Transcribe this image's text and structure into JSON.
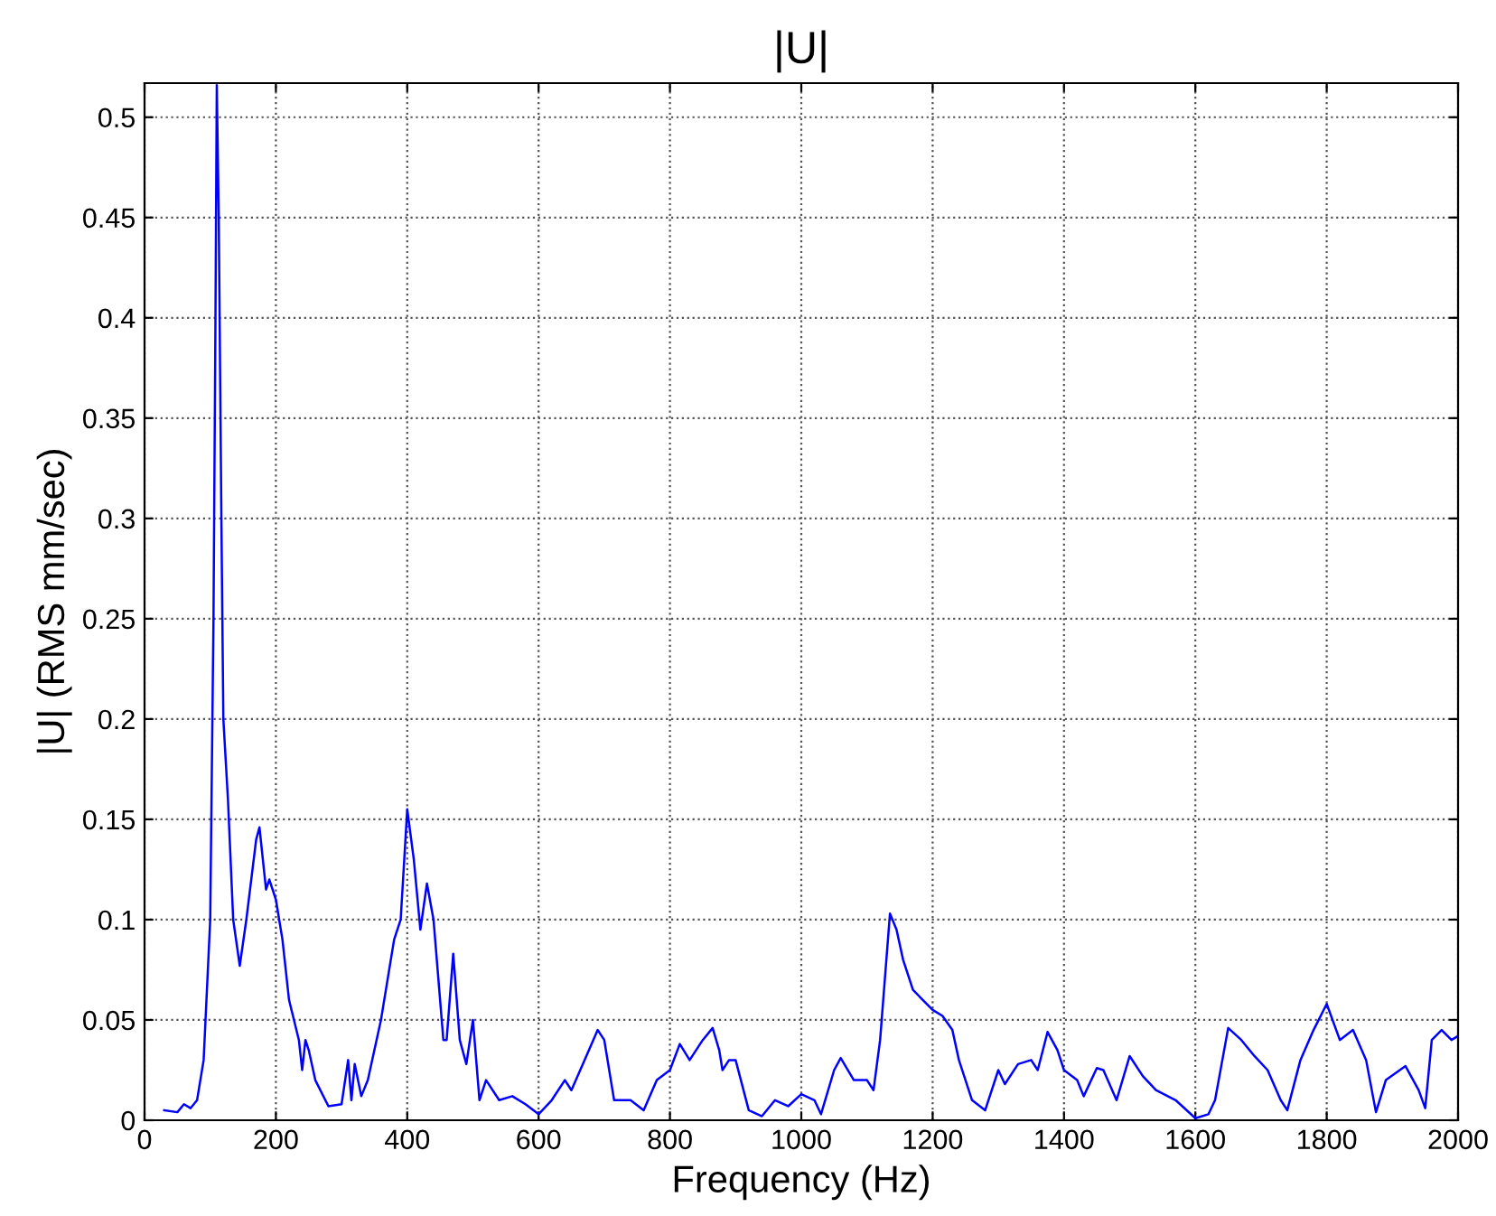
{
  "chart_data": {
    "type": "line",
    "title": "|U|",
    "xlabel": "Frequency (Hz)",
    "ylabel": "|U| (RMS mm/sec)",
    "xlim": [
      0,
      2000
    ],
    "ylim": [
      0,
      0.517
    ],
    "xticks": [
      0,
      200,
      400,
      600,
      800,
      1000,
      1200,
      1400,
      1600,
      1800,
      2000
    ],
    "yticks": [
      0,
      0.05,
      0.1,
      0.15,
      0.2,
      0.25,
      0.3,
      0.35,
      0.4,
      0.45,
      0.5
    ],
    "grid": true,
    "marker": "none",
    "line_style": "solid",
    "series": [
      {
        "color": "#0000ff",
        "x": [
          30,
          50,
          60,
          70,
          80,
          90,
          100,
          105,
          108,
          110,
          113,
          117,
          120,
          127,
          135,
          145,
          155,
          170,
          175,
          185,
          190,
          200,
          210,
          220,
          235,
          240,
          245,
          250,
          260,
          280,
          300,
          310,
          315,
          320,
          330,
          340,
          360,
          380,
          390,
          400,
          410,
          420,
          430,
          440,
          455,
          460,
          470,
          480,
          490,
          500,
          510,
          520,
          540,
          560,
          580,
          600,
          620,
          640,
          650,
          670,
          690,
          700,
          715,
          740,
          760,
          780,
          800,
          815,
          830,
          850,
          865,
          875,
          880,
          890,
          900,
          920,
          940,
          960,
          980,
          1000,
          1020,
          1030,
          1050,
          1060,
          1080,
          1100,
          1110,
          1120,
          1135,
          1145,
          1155,
          1170,
          1185,
          1200,
          1215,
          1230,
          1240,
          1260,
          1280,
          1300,
          1310,
          1330,
          1350,
          1360,
          1375,
          1390,
          1400,
          1420,
          1430,
          1450,
          1460,
          1480,
          1500,
          1520,
          1540,
          1570,
          1600,
          1620,
          1630,
          1650,
          1670,
          1690,
          1710,
          1730,
          1740,
          1760,
          1780,
          1800,
          1820,
          1840,
          1860,
          1875,
          1890,
          1920,
          1940,
          1950,
          1960,
          1975,
          1990,
          2000
        ],
        "values": [
          0.005,
          0.004,
          0.008,
          0.006,
          0.01,
          0.03,
          0.1,
          0.25,
          0.4,
          0.516,
          0.45,
          0.3,
          0.2,
          0.16,
          0.1,
          0.077,
          0.1,
          0.14,
          0.146,
          0.115,
          0.12,
          0.11,
          0.09,
          0.06,
          0.04,
          0.025,
          0.04,
          0.035,
          0.02,
          0.007,
          0.008,
          0.03,
          0.01,
          0.028,
          0.012,
          0.02,
          0.05,
          0.09,
          0.1,
          0.155,
          0.13,
          0.095,
          0.118,
          0.1,
          0.04,
          0.04,
          0.083,
          0.04,
          0.028,
          0.05,
          0.01,
          0.02,
          0.01,
          0.012,
          0.008,
          0.003,
          0.01,
          0.02,
          0.015,
          0.03,
          0.045,
          0.04,
          0.01,
          0.01,
          0.005,
          0.02,
          0.025,
          0.038,
          0.03,
          0.04,
          0.046,
          0.035,
          0.025,
          0.03,
          0.03,
          0.005,
          0.002,
          0.01,
          0.007,
          0.013,
          0.01,
          0.003,
          0.025,
          0.031,
          0.02,
          0.02,
          0.015,
          0.04,
          0.103,
          0.095,
          0.08,
          0.065,
          0.06,
          0.055,
          0.052,
          0.045,
          0.03,
          0.01,
          0.005,
          0.025,
          0.018,
          0.028,
          0.03,
          0.025,
          0.044,
          0.035,
          0.025,
          0.02,
          0.012,
          0.026,
          0.025,
          0.01,
          0.032,
          0.022,
          0.015,
          0.01,
          0.001,
          0.003,
          0.01,
          0.046,
          0.04,
          0.032,
          0.025,
          0.01,
          0.005,
          0.03,
          0.045,
          0.058,
          0.04,
          0.045,
          0.03,
          0.004,
          0.02,
          0.027,
          0.015,
          0.006,
          0.04,
          0.045,
          0.04,
          0.042
        ]
      }
    ]
  }
}
